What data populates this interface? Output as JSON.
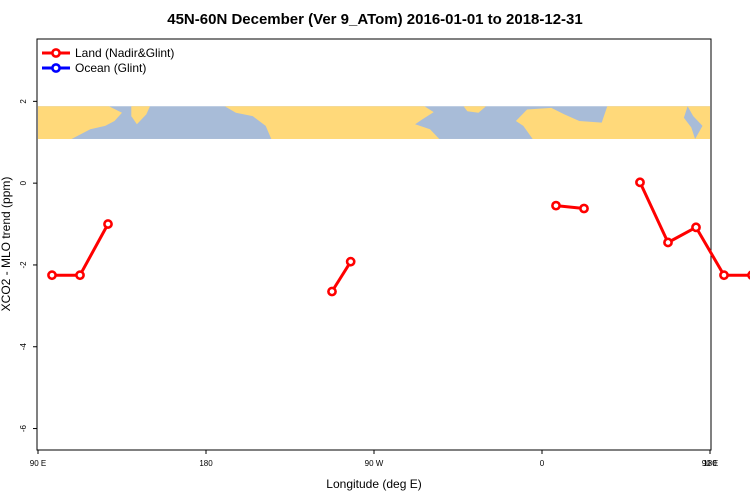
{
  "chart_data": {
    "type": "line",
    "title": "45N-60N December (Ver 9_ATom)   2016-01-01 to 2018-12-31",
    "xlabel": "Longitude (deg E)",
    "ylabel": "XCO2 - MLO trend (ppm)",
    "xlim": [
      90,
      450
    ],
    "ylim": [
      -6.5,
      3.5
    ],
    "x_ticks": [
      {
        "value": 90,
        "label": "90 E"
      },
      {
        "value": 180,
        "label": "180"
      },
      {
        "value": 270,
        "label": "90 W"
      },
      {
        "value": 360,
        "label": "0"
      },
      {
        "value": 450,
        "label": "90 E"
      },
      {
        "value": 540,
        "label": "180"
      }
    ],
    "y_ticks": [
      {
        "value": 2,
        "label": "2"
      },
      {
        "value": 0,
        "label": "0"
      },
      {
        "value": -2,
        "label": "-2"
      },
      {
        "value": -4,
        "label": "-4"
      },
      {
        "value": -6,
        "label": "-6"
      }
    ],
    "legend": {
      "position": "top-left",
      "entries": [
        {
          "label": "Land (Nadir&Glint)",
          "color": "#ff0000"
        },
        {
          "label": "Ocean (Glint)",
          "color": "#0000ff"
        }
      ]
    },
    "map_band": {
      "y_range": [
        1.08,
        1.88
      ],
      "land_color": "#ffd97a",
      "ocean_color": "#a8bcd8"
    },
    "series": [
      {
        "name": "Land (Nadir&Glint)",
        "color": "#ff0000",
        "segments": [
          [
            [
              97.5,
              -2.25
            ],
            [
              112.5,
              -2.25
            ],
            [
              127.5,
              -1.0
            ]
          ],
          [
            [
              247.5,
              -2.65
            ],
            [
              257.5,
              -1.92
            ]
          ],
          [
            [
              367.5,
              -0.55
            ],
            [
              382.5,
              -0.62
            ]
          ],
          [
            [
              412.5,
              0.02
            ],
            [
              427.5,
              -1.45
            ],
            [
              442.5,
              -1.08
            ],
            [
              457.5,
              -2.25
            ],
            [
              472.5,
              -2.25
            ],
            [
              487.5,
              -1.0
            ]
          ]
        ]
      },
      {
        "name": "Ocean (Glint)",
        "color": "#0000ff",
        "segments": []
      }
    ]
  }
}
